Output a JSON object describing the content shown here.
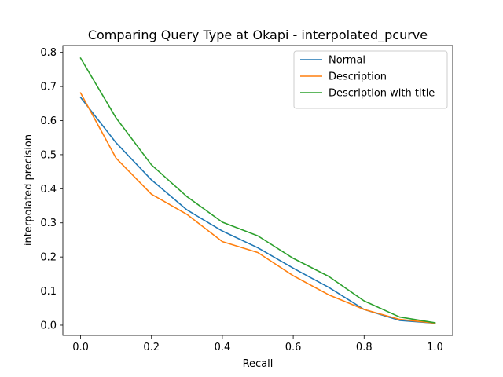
{
  "chart_data": {
    "type": "line",
    "title": "Comparing Query Type at Okapi - interpolated_pcurve",
    "xlabel": "Recall",
    "ylabel": "interpolated precision",
    "xlim": [
      -0.05,
      1.05
    ],
    "ylim": [
      -0.03,
      0.82
    ],
    "x": [
      0.0,
      0.1,
      0.2,
      0.3,
      0.4,
      0.5,
      0.6,
      0.7,
      0.8,
      0.9,
      1.0
    ],
    "xticks": [
      "0.0",
      "0.2",
      "0.4",
      "0.6",
      "0.8",
      "1.0"
    ],
    "yticks": [
      "0.0",
      "0.1",
      "0.2",
      "0.3",
      "0.4",
      "0.5",
      "0.6",
      "0.7",
      "0.8"
    ],
    "grid": false,
    "legend_position": "top-right",
    "series": [
      {
        "name": "Normal",
        "color": "#1f77b4",
        "values": [
          0.668,
          0.535,
          0.426,
          0.338,
          0.276,
          0.227,
          0.167,
          0.111,
          0.046,
          0.014,
          0.006
        ]
      },
      {
        "name": "Description",
        "color": "#ff7f0e",
        "values": [
          0.681,
          0.49,
          0.384,
          0.325,
          0.245,
          0.213,
          0.145,
          0.089,
          0.046,
          0.017,
          0.006
        ]
      },
      {
        "name": "Description with title",
        "color": "#2ca02c",
        "values": [
          0.783,
          0.608,
          0.47,
          0.377,
          0.302,
          0.262,
          0.196,
          0.143,
          0.071,
          0.024,
          0.007
        ]
      }
    ]
  }
}
